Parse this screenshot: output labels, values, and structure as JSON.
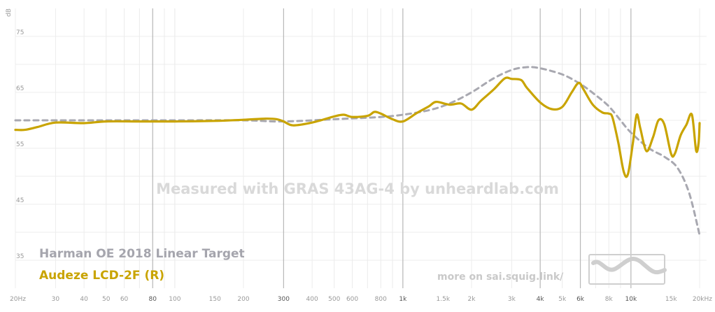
{
  "chart_data": {
    "type": "line",
    "xscale": "log",
    "xlim": [
      20,
      20000
    ],
    "ylim": [
      30,
      80
    ],
    "ylabel": "dB",
    "grid": true,
    "watermark": "Measured with GRAS 43AG-4 by unheardlab.com",
    "footer_link": "more on sai.squig.link/",
    "y_ticks": [
      "35",
      "45",
      "55",
      "65",
      "75"
    ],
    "x_ticks": [
      "20Hz",
      "30",
      "40",
      "50",
      "60",
      "80",
      "100",
      "150",
      "200",
      "300",
      "400",
      "500",
      "600",
      "800",
      "1k",
      "1.5k",
      "2k",
      "3k",
      "4k",
      "5k",
      "6k",
      "8k",
      "10k",
      "15k",
      "20kHz"
    ],
    "legend_position": "bottom-left",
    "series": [
      {
        "name": "Harman OE 2018 Linear Target",
        "color": "#a8a8b0",
        "dashed": true,
        "points": [
          [
            20,
            60
          ],
          [
            50,
            60
          ],
          [
            100,
            60
          ],
          [
            200,
            60
          ],
          [
            300,
            59.8
          ],
          [
            500,
            60.2
          ],
          [
            800,
            60.6
          ],
          [
            1000,
            61.0
          ],
          [
            1300,
            61.8
          ],
          [
            1600,
            63.0
          ],
          [
            2000,
            65.0
          ],
          [
            2500,
            67.5
          ],
          [
            3000,
            69.0
          ],
          [
            3500,
            69.5
          ],
          [
            4000,
            69.3
          ],
          [
            5000,
            68.2
          ],
          [
            6000,
            66.5
          ],
          [
            7000,
            64.5
          ],
          [
            8000,
            62.5
          ],
          [
            9000,
            60.0
          ],
          [
            10000,
            57.8
          ],
          [
            12000,
            55.0
          ],
          [
            14000,
            53.5
          ],
          [
            16000,
            51.5
          ],
          [
            18000,
            47.0
          ],
          [
            20000,
            39.5
          ]
        ]
      },
      {
        "name": "Audeze LCD-2F (R)",
        "color": "#c9a400",
        "dashed": false,
        "points": [
          [
            20,
            58.3
          ],
          [
            22,
            58.3
          ],
          [
            25,
            58.8
          ],
          [
            30,
            59.6
          ],
          [
            40,
            59.5
          ],
          [
            50,
            59.8
          ],
          [
            70,
            59.8
          ],
          [
            100,
            59.8
          ],
          [
            150,
            59.9
          ],
          [
            200,
            60.1
          ],
          [
            250,
            60.3
          ],
          [
            280,
            60.2
          ],
          [
            300,
            59.8
          ],
          [
            330,
            59.1
          ],
          [
            400,
            59.6
          ],
          [
            500,
            60.7
          ],
          [
            550,
            61.0
          ],
          [
            600,
            60.6
          ],
          [
            700,
            60.8
          ],
          [
            750,
            61.5
          ],
          [
            800,
            61.2
          ],
          [
            900,
            60.2
          ],
          [
            1000,
            59.8
          ],
          [
            1150,
            61.3
          ],
          [
            1300,
            62.5
          ],
          [
            1400,
            63.3
          ],
          [
            1600,
            62.8
          ],
          [
            1800,
            63.0
          ],
          [
            2000,
            61.9
          ],
          [
            2200,
            63.5
          ],
          [
            2500,
            65.5
          ],
          [
            2800,
            67.5
          ],
          [
            3000,
            67.4
          ],
          [
            3300,
            67.2
          ],
          [
            3500,
            65.8
          ],
          [
            4000,
            63.2
          ],
          [
            4500,
            62.0
          ],
          [
            5000,
            62.4
          ],
          [
            5500,
            65.0
          ],
          [
            5900,
            66.7
          ],
          [
            6200,
            65.5
          ],
          [
            6800,
            62.8
          ],
          [
            7500,
            61.4
          ],
          [
            8000,
            61.2
          ],
          [
            8300,
            60.5
          ],
          [
            8800,
            56.0
          ],
          [
            9300,
            50.8
          ],
          [
            9700,
            50.4
          ],
          [
            10200,
            56.0
          ],
          [
            10600,
            61.0
          ],
          [
            11000,
            58.5
          ],
          [
            11700,
            54.5
          ],
          [
            12500,
            57.0
          ],
          [
            13200,
            60.0
          ],
          [
            14000,
            59.3
          ],
          [
            15000,
            54.0
          ],
          [
            15600,
            54.1
          ],
          [
            16500,
            57.3
          ],
          [
            17500,
            59.2
          ],
          [
            18500,
            61.0
          ],
          [
            19300,
            54.6
          ],
          [
            19800,
            56.0
          ],
          [
            20000,
            59.5
          ]
        ]
      }
    ]
  }
}
